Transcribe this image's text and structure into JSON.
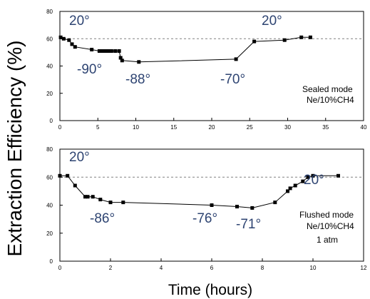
{
  "figure": {
    "ylabel": "Extraction Efficiency (%)",
    "xlabel": "Time (hours)"
  },
  "colors": {
    "annotation": "#2e4472",
    "series": "#000000",
    "reference": "#808080"
  },
  "chart_data": [
    {
      "type": "line",
      "panel": "top",
      "xlim": [
        0,
        40
      ],
      "ylim": [
        0,
        80
      ],
      "xticks": [
        0,
        5,
        10,
        15,
        20,
        25,
        30,
        35,
        40
      ],
      "yticks": [
        0,
        20,
        40,
        60,
        80
      ],
      "reference_line_y": 60,
      "series": [
        {
          "x": [
            0.1,
            0.5,
            1.2,
            1.6,
            2.0,
            4.2,
            5.2,
            5.5,
            5.8,
            6.1,
            6.4,
            6.8,
            7.3,
            7.8,
            8.0,
            8.2,
            10.4,
            23.2,
            25.6,
            29.6,
            31.8,
            33.0
          ],
          "y": [
            61,
            60,
            59,
            56,
            54,
            52,
            51,
            51,
            51,
            51,
            51,
            51,
            51,
            51,
            46,
            44,
            43,
            45,
            58,
            59,
            61,
            61
          ]
        }
      ],
      "annotations": [
        "20°",
        "-90°",
        "-88°",
        "-70°",
        "20°"
      ],
      "legend_text": [
        "Sealed mode",
        "Ne/10%CH4"
      ]
    },
    {
      "type": "line",
      "panel": "bottom",
      "xlim": [
        0,
        12
      ],
      "ylim": [
        0,
        80
      ],
      "xticks": [
        0,
        2,
        4,
        6,
        8,
        10,
        12
      ],
      "yticks": [
        0,
        20,
        40,
        60,
        80
      ],
      "reference_line_y": 60,
      "series": [
        {
          "x": [
            0.0,
            0.3,
            0.6,
            1.0,
            1.1,
            1.3,
            1.6,
            2.0,
            2.5,
            6.0,
            7.0,
            7.6,
            8.5,
            9.0,
            9.1,
            9.3,
            9.6,
            9.8,
            10.0,
            11.0
          ],
          "y": [
            61,
            61,
            54,
            46,
            46,
            46,
            44,
            42,
            42,
            40,
            39,
            38,
            42,
            50,
            52,
            54,
            57,
            60,
            61,
            61
          ]
        }
      ],
      "annotations": [
        "20°",
        "-86°",
        "-76°",
        "-71°",
        "20°"
      ],
      "legend_text": [
        "Flushed mode",
        "Ne/10%CH4",
        "1 atm"
      ]
    }
  ]
}
